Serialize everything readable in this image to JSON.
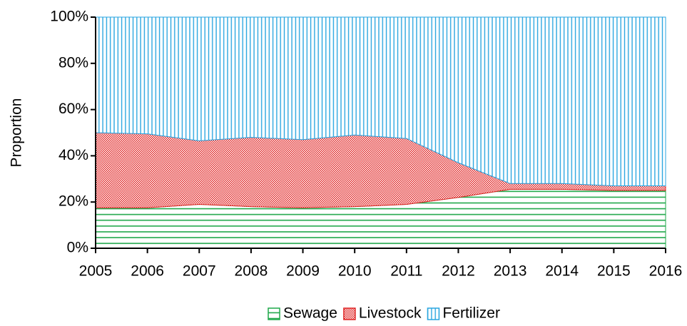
{
  "chart_data": {
    "type": "area",
    "stacked": true,
    "y_label": "Proportion",
    "x": [
      2005,
      2006,
      2007,
      2008,
      2009,
      2010,
      2011,
      2012,
      2013,
      2014,
      2015,
      2016
    ],
    "xlim": [
      2005,
      2016
    ],
    "xticks": [
      2005,
      2006,
      2007,
      2008,
      2009,
      2010,
      2011,
      2012,
      2013,
      2014,
      2015,
      2016
    ],
    "ylim": [
      0,
      100
    ],
    "yticks": [
      {
        "value": 0,
        "label": "0%"
      },
      {
        "value": 20,
        "label": "20%"
      },
      {
        "value": 40,
        "label": "40%"
      },
      {
        "value": 60,
        "label": "60%"
      },
      {
        "value": 80,
        "label": "80%"
      },
      {
        "value": 100,
        "label": "100%"
      }
    ],
    "series": [
      {
        "name": "Sewage",
        "color": "#1fa84a",
        "pattern": "horizontal",
        "values": [
          17.5,
          17.5,
          19,
          18,
          17.5,
          18,
          19,
          22,
          25.5,
          25.5,
          25,
          25
        ]
      },
      {
        "name": "Livestock",
        "color": "#e02424",
        "pattern": "checker",
        "values": [
          32.5,
          32,
          27.5,
          30,
          29.5,
          31,
          28.5,
          15,
          2.5,
          2.5,
          2,
          2
        ]
      },
      {
        "name": "Fertilizer",
        "color": "#2aa6e0",
        "pattern": "vertical",
        "values": [
          50,
          50.5,
          53.5,
          52,
          53,
          51,
          52.5,
          63,
          72,
          72,
          73,
          73
        ]
      }
    ],
    "legend": "bottom"
  }
}
